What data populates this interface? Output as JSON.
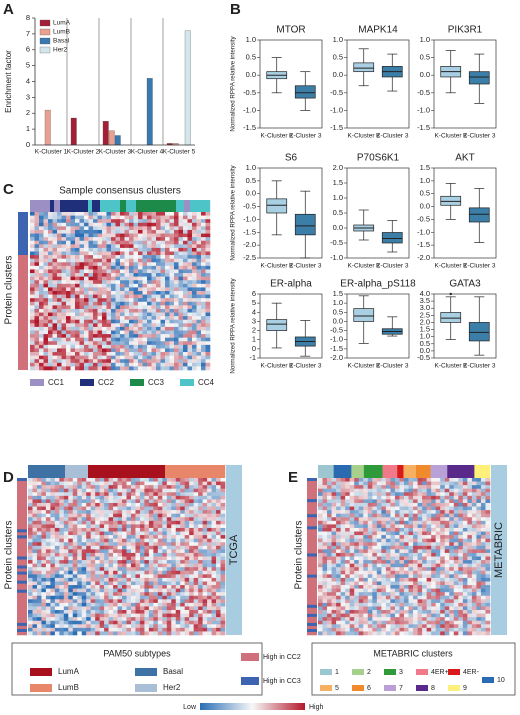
{
  "panel_labels": [
    "A",
    "B",
    "C",
    "D",
    "E"
  ],
  "chart_data": [
    {
      "type": "bar",
      "ylabel": "Enrichment factor",
      "categories": [
        "K-Cluster 1",
        "K-Cluster 2",
        "K-Cluster 3",
        "K-Cluster 4",
        "K-Cluster 5"
      ],
      "series": [
        {
          "name": "LumA",
          "color": "#a31f36",
          "values": [
            0,
            1.7,
            1.5,
            0,
            0.1
          ]
        },
        {
          "name": "LumB",
          "color": "#e9a08f",
          "values": [
            2.2,
            0,
            0.9,
            0,
            0.1
          ]
        },
        {
          "name": "Basal",
          "color": "#3a78b0",
          "values": [
            0,
            0,
            0.6,
            4.2,
            0
          ]
        },
        {
          "name": "Her2",
          "color": "#d3e6ec",
          "values": [
            0,
            0,
            0,
            0,
            7.2
          ]
        }
      ],
      "ylim": [
        0,
        8
      ],
      "yticks": [
        0,
        1,
        2,
        3,
        4,
        5,
        6,
        7,
        8
      ]
    },
    {
      "type": "box",
      "title": "MTOR",
      "ylabel": "Normalized RPPA relative intensity",
      "categories": [
        "K-Cluster 2",
        "K-Cluster 3"
      ],
      "colors": [
        "#a9cfe3",
        "#3b7ea8"
      ],
      "min": [
        -0.5,
        -1.0
      ],
      "q1": [
        -0.1,
        -0.65
      ],
      "median": [
        0.0,
        -0.5
      ],
      "q3": [
        0.1,
        -0.3
      ],
      "max": [
        0.5,
        0.1
      ],
      "ylim": [
        -1.5,
        1.0
      ],
      "yticks": [
        -1.5,
        {
          "value": -1,
          "label": "-1.0"
        },
        -0.5,
        {
          "value": 0,
          "label": "0.0"
        },
        0.5,
        {
          "value": 1,
          "label": "1.0"
        }
      ]
    },
    {
      "type": "box",
      "title": "MAPK14",
      "categories": [
        "K-Cluster 2",
        "K-Cluster 3"
      ],
      "colors": [
        "#a9cfe3",
        "#3b7ea8"
      ],
      "min": [
        -0.3,
        -0.45
      ],
      "q1": [
        0.1,
        -0.05
      ],
      "median": [
        0.2,
        0.1
      ],
      "q3": [
        0.35,
        0.25
      ],
      "max": [
        0.75,
        0.6
      ],
      "ylim": [
        -1.5,
        1.0
      ],
      "yticks": [
        -1.5,
        {
          "value": -1,
          "label": "-1.0"
        },
        -0.5,
        {
          "value": 0,
          "label": "0.0"
        },
        0.5,
        {
          "value": 1,
          "label": "1.0"
        }
      ]
    },
    {
      "type": "box",
      "title": "PIK3R1",
      "categories": [
        "K-Cluster 2",
        "K-Cluster 3"
      ],
      "colors": [
        "#a9cfe3",
        "#3b7ea8"
      ],
      "min": [
        -0.5,
        -0.8
      ],
      "q1": [
        -0.05,
        -0.25
      ],
      "median": [
        0.1,
        -0.05
      ],
      "q3": [
        0.25,
        0.1
      ],
      "max": [
        0.7,
        0.6
      ],
      "ylim": [
        -1.5,
        1.0
      ],
      "yticks": [
        -1.5,
        {
          "value": -1,
          "label": "-1.0"
        },
        -0.5,
        {
          "value": 0,
          "label": "0.0"
        },
        0.5,
        {
          "value": 1,
          "label": "1.0"
        }
      ]
    },
    {
      "type": "box",
      "title": "S6",
      "ylabel": "Normalized RPPA relative intensity",
      "categories": [
        "K-Cluster 2",
        "K-Cluster 3"
      ],
      "colors": [
        "#a9cfe3",
        "#3b7ea8"
      ],
      "min": [
        -1.6,
        -2.5
      ],
      "q1": [
        -0.75,
        -1.6
      ],
      "median": [
        -0.45,
        -1.25
      ],
      "q3": [
        -0.2,
        -0.8
      ],
      "max": [
        0.5,
        0.1
      ],
      "ylim": [
        -2.5,
        1.0
      ],
      "yticks": [
        -2.5,
        {
          "value": -2,
          "label": "-2.0"
        },
        -1.5,
        {
          "value": -1,
          "label": "-1.0"
        },
        -0.5,
        {
          "value": 0,
          "label": "0.0"
        },
        0.5,
        {
          "value": 1,
          "label": "1.0"
        }
      ]
    },
    {
      "type": "box",
      "title": "P70S6K1",
      "categories": [
        "K-Cluster 2",
        "K-Cluster 3"
      ],
      "colors": [
        "#a9cfe3",
        "#3b7ea8"
      ],
      "min": [
        -0.4,
        -0.8
      ],
      "q1": [
        -0.1,
        -0.5
      ],
      "median": [
        0.0,
        -0.35
      ],
      "q3": [
        0.1,
        -0.15
      ],
      "max": [
        0.6,
        0.25
      ],
      "ylim": [
        -1.0,
        2.0
      ],
      "yticks": [
        {
          "value": -1,
          "label": "-1.0"
        },
        -0.5,
        {
          "value": 0,
          "label": "0.0"
        },
        0.5,
        {
          "value": 1,
          "label": "1.0"
        },
        1.5,
        {
          "value": 2,
          "label": "2.0"
        }
      ]
    },
    {
      "type": "box",
      "title": "AKT",
      "categories": [
        "K-Cluster 2",
        "K-Cluster 3"
      ],
      "colors": [
        "#a9cfe3",
        "#3b7ea8"
      ],
      "min": [
        -0.5,
        -1.4
      ],
      "q1": [
        0.05,
        -0.6
      ],
      "median": [
        0.2,
        -0.3
      ],
      "q3": [
        0.4,
        -0.05
      ],
      "max": [
        0.9,
        0.7
      ],
      "ylim": [
        -2.0,
        1.5
      ],
      "yticks": [
        {
          "value": -2,
          "label": "-2.0"
        },
        -1.5,
        {
          "value": -1,
          "label": "-1.0"
        },
        -0.5,
        {
          "value": 0,
          "label": "0.0"
        },
        0.5,
        {
          "value": 1,
          "label": "1.0"
        },
        1.5
      ]
    },
    {
      "type": "box",
      "title": "ER-alpha",
      "ylabel": "Normalized RPPA relative intensity",
      "categories": [
        "K-Cluster 2",
        "K-Cluster 3"
      ],
      "colors": [
        "#a9cfe3",
        "#3b7ea8"
      ],
      "min": [
        0.1,
        -0.8
      ],
      "q1": [
        2.0,
        0.3
      ],
      "median": [
        2.7,
        0.8
      ],
      "q3": [
        3.2,
        1.3
      ],
      "max": [
        5.0,
        3.1
      ],
      "ylim": [
        -1,
        6
      ],
      "yticks": [
        -1,
        0,
        1,
        2,
        3,
        4,
        5,
        6
      ]
    },
    {
      "type": "box",
      "title": "ER-alpha_pS118",
      "categories": [
        "K-Cluster 2",
        "K-Cluster 3"
      ],
      "colors": [
        "#a9cfe3",
        "#3b7ea8"
      ],
      "min": [
        -1.2,
        -0.8
      ],
      "q1": [
        0.0,
        -0.7
      ],
      "median": [
        0.3,
        -0.55
      ],
      "q3": [
        0.7,
        -0.4
      ],
      "max": [
        1.4,
        0.25
      ],
      "ylim": [
        -2.0,
        1.5
      ],
      "yticks": [
        {
          "value": -2,
          "label": "-2.0"
        },
        -1.5,
        {
          "value": -1,
          "label": "-1.0"
        },
        -0.5,
        {
          "value": 0,
          "label": "0.0"
        },
        0.5,
        {
          "value": 1,
          "label": "1.0"
        },
        1.5
      ]
    },
    {
      "type": "box",
      "title": "GATA3",
      "categories": [
        "K-Cluster 2",
        "K-Cluster 3"
      ],
      "colors": [
        "#a9cfe3",
        "#3b7ea8"
      ],
      "min": [
        0.8,
        -0.3
      ],
      "q1": [
        2.0,
        0.7
      ],
      "median": [
        2.3,
        1.3
      ],
      "q3": [
        2.7,
        2.0
      ],
      "max": [
        3.8,
        3.8
      ],
      "outliers": [
        [
          4.0
        ],
        []
      ],
      "ylim": [
        -0.5,
        4.0
      ],
      "yticks": [
        -0.5,
        {
          "value": 0,
          "label": "0.0"
        },
        0.5,
        {
          "value": 1,
          "label": "1.0"
        },
        1.5,
        {
          "value": 2,
          "label": "2.0"
        },
        2.5,
        {
          "value": 3,
          "label": "3.0"
        },
        3.5,
        {
          "value": 4,
          "label": "4.0"
        }
      ]
    }
  ],
  "heatmap_c": {
    "title": "Sample consensus clusters",
    "row_label": "Protein clusters",
    "legend": [
      {
        "name": "CC1",
        "color": "#9b8fc4"
      },
      {
        "name": "CC2",
        "color": "#1f2f7a"
      },
      {
        "name": "CC3",
        "color": "#1e8a4a"
      },
      {
        "name": "CC4",
        "color": "#4cc4c8"
      }
    ]
  },
  "heatmap_d": {
    "side_label": "TCGA",
    "row_label": "Protein clusters",
    "legend_title": "PAM50 subtypes",
    "legend": [
      {
        "name": "LumA",
        "color": "#a8101e"
      },
      {
        "name": "LumB",
        "color": "#e8866a"
      },
      {
        "name": "Basal",
        "color": "#3f72a4"
      },
      {
        "name": "Her2",
        "color": "#a9bfd8"
      }
    ]
  },
  "heatmap_e": {
    "side_label": "METABRIC",
    "row_label": "Protein clusters",
    "legend_title": "METABRIC clusters",
    "legend": [
      {
        "name": "1",
        "color": "#9cc7d0"
      },
      {
        "name": "2",
        "color": "#a8d08d"
      },
      {
        "name": "3",
        "color": "#2e9a3a"
      },
      {
        "name": "4ER+",
        "color": "#f07a8a"
      },
      {
        "name": "4ER-",
        "color": "#d91a1a"
      },
      {
        "name": "5",
        "color": "#f5b062"
      },
      {
        "name": "6",
        "color": "#f08a2a"
      },
      {
        "name": "7",
        "color": "#b9a0d6"
      },
      {
        "name": "8",
        "color": "#5a2a8a"
      },
      {
        "name": "9",
        "color": "#fff07a"
      },
      {
        "name": "10",
        "color": "#2a6ab0"
      }
    ]
  },
  "protein_legend": [
    {
      "name": "High in CC2",
      "color": "#d0707a"
    },
    {
      "name": "High in CC3",
      "color": "#3c64b0"
    }
  ],
  "colorbar": {
    "low": "Low",
    "high": "High"
  }
}
